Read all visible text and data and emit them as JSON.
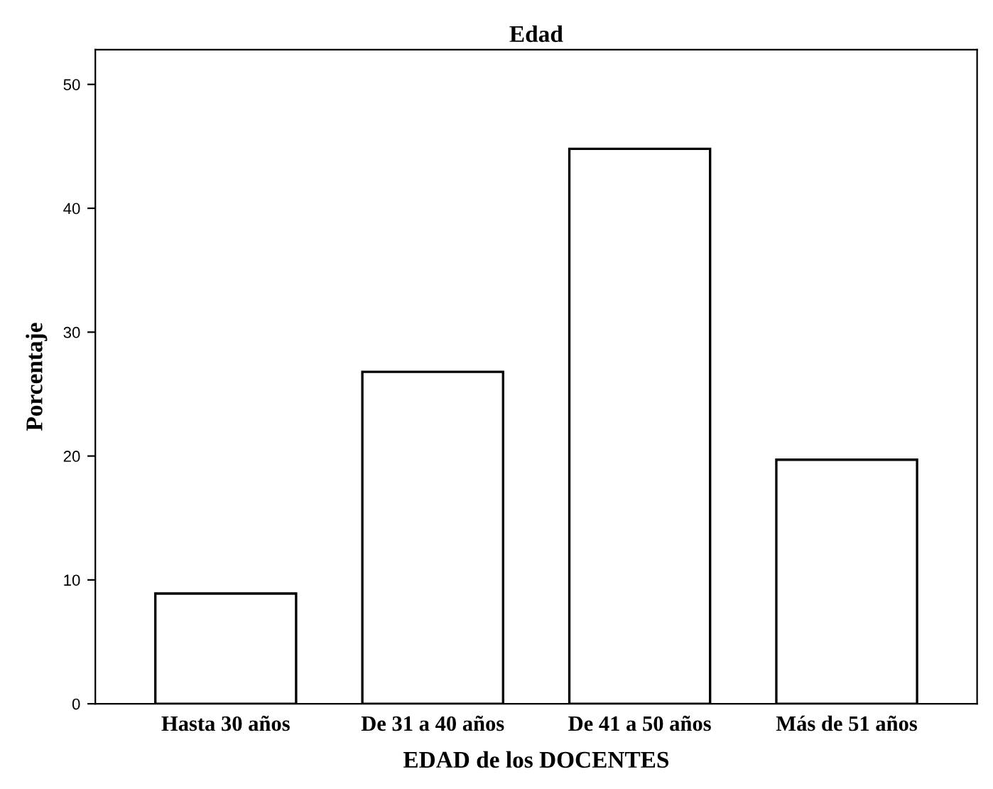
{
  "chart_data": {
    "type": "bar",
    "title": "Edad",
    "xlabel": "EDAD de los DOCENTES",
    "ylabel": "Porcentaje",
    "categories": [
      "Hasta 30 años",
      "De 31 a 40 años",
      "De 41 a 50 años",
      "Más de 51 años"
    ],
    "values": [
      8.9,
      26.8,
      44.8,
      19.7
    ],
    "color": "#ffffff",
    "ylim": [
      0,
      52.8
    ],
    "yticks": [
      0,
      10,
      20,
      30,
      40,
      50
    ],
    "grid": false,
    "legend": false
  }
}
